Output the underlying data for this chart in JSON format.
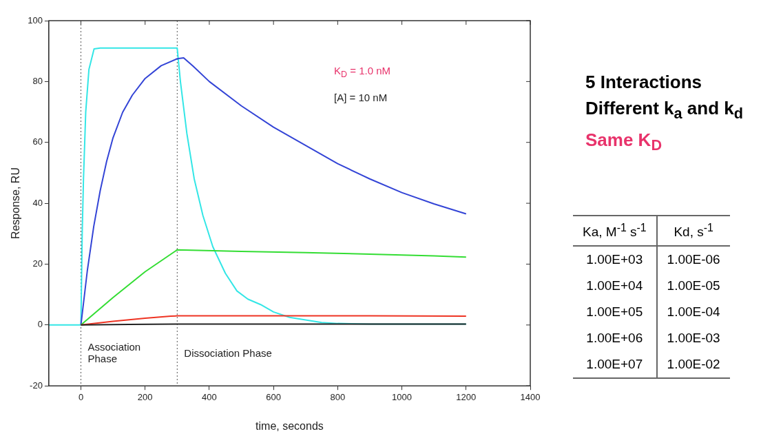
{
  "chart_data": {
    "type": "line",
    "xlabel": "time, seconds",
    "ylabel": "Response, RU",
    "xlim": [
      -100,
      1400
    ],
    "xticks": [
      0,
      200,
      400,
      600,
      800,
      1000,
      1200,
      1400
    ],
    "ylim": [
      -20,
      100
    ],
    "yticks": [
      -20,
      0,
      20,
      40,
      60,
      80,
      100
    ],
    "grid": false,
    "legend": false,
    "marker": "none",
    "line_style": "solid",
    "series": [
      {
        "color": "#222222",
        "x": [
          0,
          150,
          300,
          600,
          900,
          1200
        ],
        "values": [
          0,
          0.2,
          0.3,
          0.3,
          0.3,
          0.3
        ]
      },
      {
        "color": "#ee3322",
        "x": [
          0,
          100,
          200,
          280,
          300,
          600,
          900,
          1200
        ],
        "values": [
          0,
          1.2,
          2.2,
          2.9,
          3,
          3,
          3,
          2.9
        ]
      },
      {
        "color": "#33dd33",
        "x": [
          0,
          100,
          200,
          300,
          500,
          700,
          900,
          1100,
          1200
        ],
        "values": [
          0,
          9,
          17.5,
          24.7,
          24.2,
          23.8,
          23.3,
          22.7,
          22.3
        ]
      },
      {
        "color": "#3344d6",
        "x": [
          0,
          20,
          40,
          60,
          80,
          100,
          130,
          160,
          200,
          250,
          300,
          320,
          350,
          400,
          500,
          600,
          700,
          800,
          900,
          1000,
          1100,
          1200
        ],
        "values": [
          0,
          17.9,
          32.4,
          44.1,
          53.7,
          61.5,
          69.9,
          75.5,
          81,
          85.2,
          87.5,
          87.8,
          85,
          80,
          72,
          65,
          59,
          53,
          48,
          43.5,
          39.8,
          36.5
        ]
      },
      {
        "color": "#33e6e6",
        "x": [
          -100,
          0,
          4,
          8,
          15,
          25,
          41,
          60,
          300,
          310,
          330,
          353,
          380,
          411,
          450,
          486,
          520,
          560,
          600,
          650,
          750,
          800,
          900,
          1200
        ],
        "values": [
          0,
          0,
          30,
          48,
          70,
          84,
          90.7,
          91,
          91,
          80,
          63,
          48,
          36,
          25.7,
          17,
          11.2,
          8.5,
          6.7,
          4.3,
          2.5,
          0.8,
          0.5,
          0.3,
          0.3
        ]
      }
    ],
    "ref_lines": [
      {
        "axis": "x",
        "value": 0,
        "label": "Association Phase",
        "color": "#555555",
        "line_style": "dotted"
      },
      {
        "axis": "x",
        "value": 300,
        "label": "Dissociation Phase",
        "color": "#555555",
        "line_style": "dotted"
      }
    ],
    "annotations": [
      "K$_{D}$ = 1.0 nM",
      "[A] = 10 nM",
      "5 Interactions",
      "Different k$_{a}$ and k$_{d}$",
      "Same K$_{D}$",
      "Ka, M$^{-1}$ s$^{-1}$",
      "Kd, s$^{-1}$",
      "1.00E+03",
      "1.00E-06",
      "1.00E+04",
      "1.00E-05",
      "1.00E+05",
      "1.00E-04",
      "1.00E+06",
      "1.00E-03",
      "1.00E+07",
      "1.00E-02"
    ]
  }
}
